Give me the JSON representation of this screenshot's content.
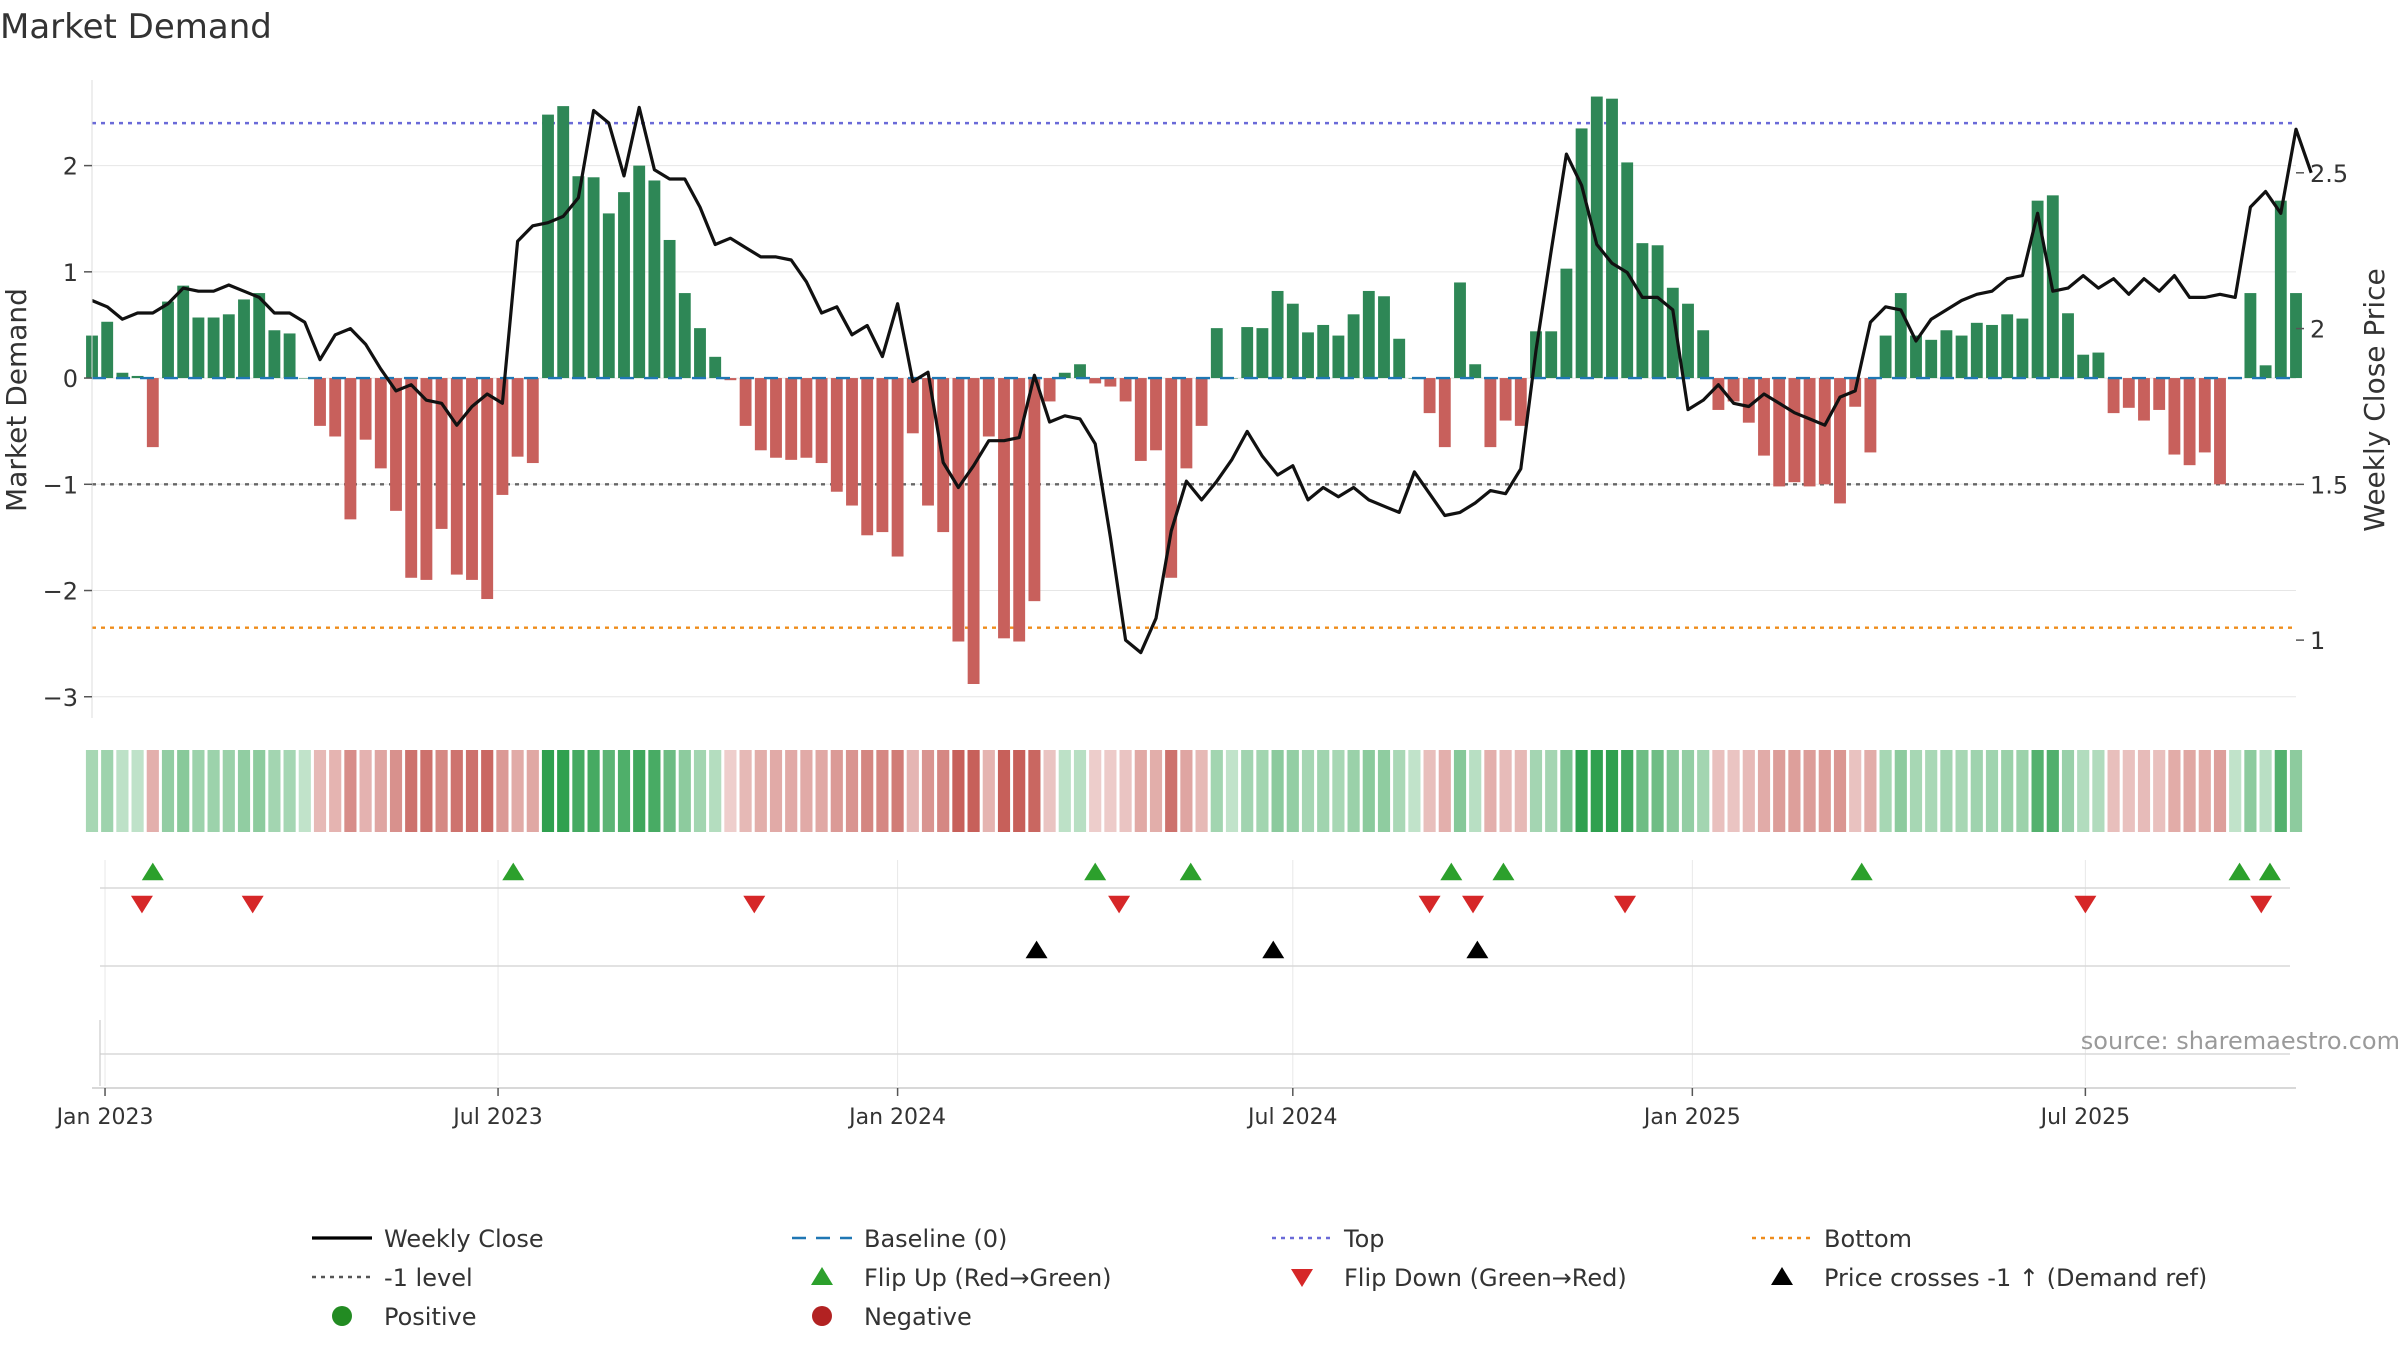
{
  "chart_data": {
    "type": "bar+line",
    "title": "Market Demand",
    "ylabel_left": "Market Demand",
    "ylabel_right": "Weekly Close Price",
    "source": "source: sharemaestro.com",
    "ylim_left": [
      -3.2,
      2.9
    ],
    "ylim_right": [
      0.75,
      2.83
    ],
    "yticks_left": [
      {
        "v": 2,
        "label": "2"
      },
      {
        "v": 1,
        "label": "1"
      },
      {
        "v": 0,
        "label": "0"
      },
      {
        "v": -1,
        "label": "−1"
      },
      {
        "v": -2,
        "label": "−2"
      },
      {
        "v": -3,
        "label": "−3"
      }
    ],
    "yticks_right": [
      {
        "v": 2.5,
        "label": "2.5"
      },
      {
        "v": 2,
        "label": "2"
      },
      {
        "v": 1.5,
        "label": "1.5"
      },
      {
        "v": 1,
        "label": "1"
      }
    ],
    "x_start": "2022-12-26",
    "x_end": "2025-10-06",
    "xticks": [
      {
        "date": "2023-01-01",
        "label": "Jan 2023"
      },
      {
        "date": "2023-07-01",
        "label": "Jul 2023"
      },
      {
        "date": "2024-01-01",
        "label": "Jan 2024"
      },
      {
        "date": "2024-07-01",
        "label": "Jul 2024"
      },
      {
        "date": "2025-01-01",
        "label": "Jan 2025"
      },
      {
        "date": "2025-07-01",
        "label": "Jul 2025"
      }
    ],
    "reference_lines": [
      {
        "name": "Top",
        "value": 2.4,
        "color": "#6a6ad8"
      },
      {
        "name": "-1 level",
        "value": -1,
        "color": "#666666"
      },
      {
        "name": "Bottom",
        "value": -2.35,
        "color": "#ef8c1a"
      }
    ],
    "series": [
      {
        "name": "Market Demand",
        "start_date": "2022-12-26",
        "frequency": "weekly",
        "values": [
          0.4,
          0.53,
          0.05,
          0.02,
          -0.65,
          0.72,
          0.87,
          0.57,
          0.57,
          0.6,
          0.74,
          0.8,
          0.45,
          0.42,
          0.0,
          -0.45,
          -0.55,
          -1.33,
          -0.58,
          -0.85,
          -1.25,
          -1.88,
          -1.9,
          -1.42,
          -1.85,
          -1.9,
          -2.08,
          -1.1,
          -0.74,
          -0.8,
          2.48,
          2.56,
          1.9,
          1.89,
          1.55,
          1.75,
          2.0,
          1.86,
          1.3,
          0.8,
          0.47,
          0.2,
          -0.02,
          -0.45,
          -0.68,
          -0.75,
          -0.77,
          -0.75,
          -0.8,
          -1.07,
          -1.2,
          -1.48,
          -1.45,
          -1.68,
          -0.52,
          -1.2,
          -1.45,
          -2.48,
          -2.88,
          -0.55,
          -2.45,
          -2.48,
          -2.1,
          -0.22,
          0.05,
          0.13,
          -0.05,
          -0.08,
          -0.22,
          -0.78,
          -0.68,
          -1.88,
          -0.85,
          -0.45,
          0.47,
          0.0,
          0.48,
          0.47,
          0.82,
          0.7,
          0.43,
          0.5,
          0.4,
          0.6,
          0.82,
          0.77,
          0.37,
          0.0,
          -0.33,
          -0.65,
          0.9,
          0.13,
          -0.65,
          -0.4,
          -0.45,
          0.44,
          0.44,
          1.03,
          2.35,
          2.65,
          2.63,
          2.03,
          1.27,
          1.25,
          0.85,
          0.7,
          0.45,
          -0.3,
          -0.22,
          -0.42,
          -0.73,
          -1.02,
          -0.98,
          -1.02,
          -1.0,
          -1.18,
          -0.27,
          -0.7,
          0.4,
          0.8,
          0.4,
          0.36,
          0.45,
          0.4,
          0.52,
          0.5,
          0.6,
          0.56,
          1.67,
          1.72,
          0.61,
          0.22,
          0.24,
          -0.33,
          -0.28,
          -0.4,
          -0.3,
          -0.72,
          -0.82,
          -0.7,
          -1.0,
          0.0,
          0.8,
          0.12,
          1.67,
          0.8
        ]
      },
      {
        "name": "Weekly Close",
        "start_date": "2022-12-26",
        "frequency": "weekly",
        "values": [
          2.09,
          2.07,
          2.03,
          2.05,
          2.05,
          2.08,
          2.13,
          2.12,
          2.12,
          2.14,
          2.12,
          2.1,
          2.05,
          2.05,
          2.02,
          1.9,
          1.98,
          2.0,
          1.95,
          1.87,
          1.8,
          1.82,
          1.77,
          1.76,
          1.69,
          1.75,
          1.79,
          1.76,
          2.28,
          2.33,
          2.34,
          2.36,
          2.42,
          2.7,
          2.66,
          2.49,
          2.71,
          2.51,
          2.48,
          2.48,
          2.39,
          2.27,
          2.29,
          2.26,
          2.23,
          2.23,
          2.22,
          2.15,
          2.05,
          2.07,
          1.98,
          2.01,
          1.91,
          2.08,
          1.83,
          1.86,
          1.57,
          1.49,
          1.56,
          1.64,
          1.64,
          1.65,
          1.85,
          1.7,
          1.72,
          1.71,
          1.63,
          1.33,
          1.0,
          0.96,
          1.07,
          1.35,
          1.51,
          1.45,
          1.51,
          1.58,
          1.67,
          1.59,
          1.53,
          1.56,
          1.45,
          1.49,
          1.46,
          1.49,
          1.45,
          1.43,
          1.41,
          1.54,
          1.47,
          1.4,
          1.41,
          1.44,
          1.48,
          1.47,
          1.55,
          1.93,
          2.25,
          2.56,
          2.46,
          2.27,
          2.21,
          2.18,
          2.1,
          2.1,
          2.06,
          1.74,
          1.77,
          1.82,
          1.76,
          1.75,
          1.79,
          1.76,
          1.73,
          1.71,
          1.69,
          1.78,
          1.8,
          2.02,
          2.07,
          2.06,
          1.96,
          2.03,
          2.06,
          2.09,
          2.11,
          2.12,
          2.16,
          2.17,
          2.37,
          2.12,
          2.13,
          2.17,
          2.13,
          2.16,
          2.11,
          2.16,
          2.12,
          2.17,
          2.1,
          2.1,
          2.11,
          2.1,
          2.39,
          2.44,
          2.37,
          2.64,
          2.5
        ]
      }
    ],
    "strip": {
      "description_colors": [
        "#2f8a4e",
        "#c7605a"
      ]
    },
    "markers": {
      "flip_up_dates": [
        "2023-01-23",
        "2023-07-08",
        "2024-04-01",
        "2024-05-15",
        "2024-09-12",
        "2024-10-06",
        "2025-03-20",
        "2025-09-10",
        "2025-09-24"
      ],
      "flip_down_dates": [
        "2023-01-18",
        "2023-03-10",
        "2023-10-27",
        "2024-04-12",
        "2024-09-02",
        "2024-09-22",
        "2024-12-01",
        "2025-07-01",
        "2025-09-20"
      ],
      "price_cross_dates": [
        "2024-03-05",
        "2024-06-22",
        "2024-09-24"
      ]
    },
    "legend": {
      "placement": "bottom",
      "items": [
        {
          "label": "Weekly Close",
          "symbol": "line",
          "color": "#000000"
        },
        {
          "label": "Baseline (0)",
          "symbol": "dash",
          "color": "#1f77b4"
        },
        {
          "label": "Top",
          "symbol": "dot",
          "color": "#6a6ad8"
        },
        {
          "label": "Bottom",
          "symbol": "dot",
          "color": "#ef8c1a"
        },
        {
          "label": "-1 level",
          "symbol": "dot",
          "color": "#555555"
        },
        {
          "label": "Flip Up (Red→Green)",
          "symbol": "tri-up",
          "color": "#2ca02c"
        },
        {
          "label": "Flip Down (Green→Red)",
          "symbol": "tri-down",
          "color": "#d62728"
        },
        {
          "label": "Price crosses -1 ↑ (Demand ref)",
          "symbol": "tri-up",
          "color": "#000000"
        },
        {
          "label": "Positive",
          "symbol": "circle",
          "color": "#228b22"
        },
        {
          "label": "Negative",
          "symbol": "circle",
          "color": "#b22222"
        }
      ]
    },
    "colors": {
      "positive_bar": "#2e8756",
      "negative_bar": "#c8605c",
      "grid": "#e6e6e6"
    }
  }
}
